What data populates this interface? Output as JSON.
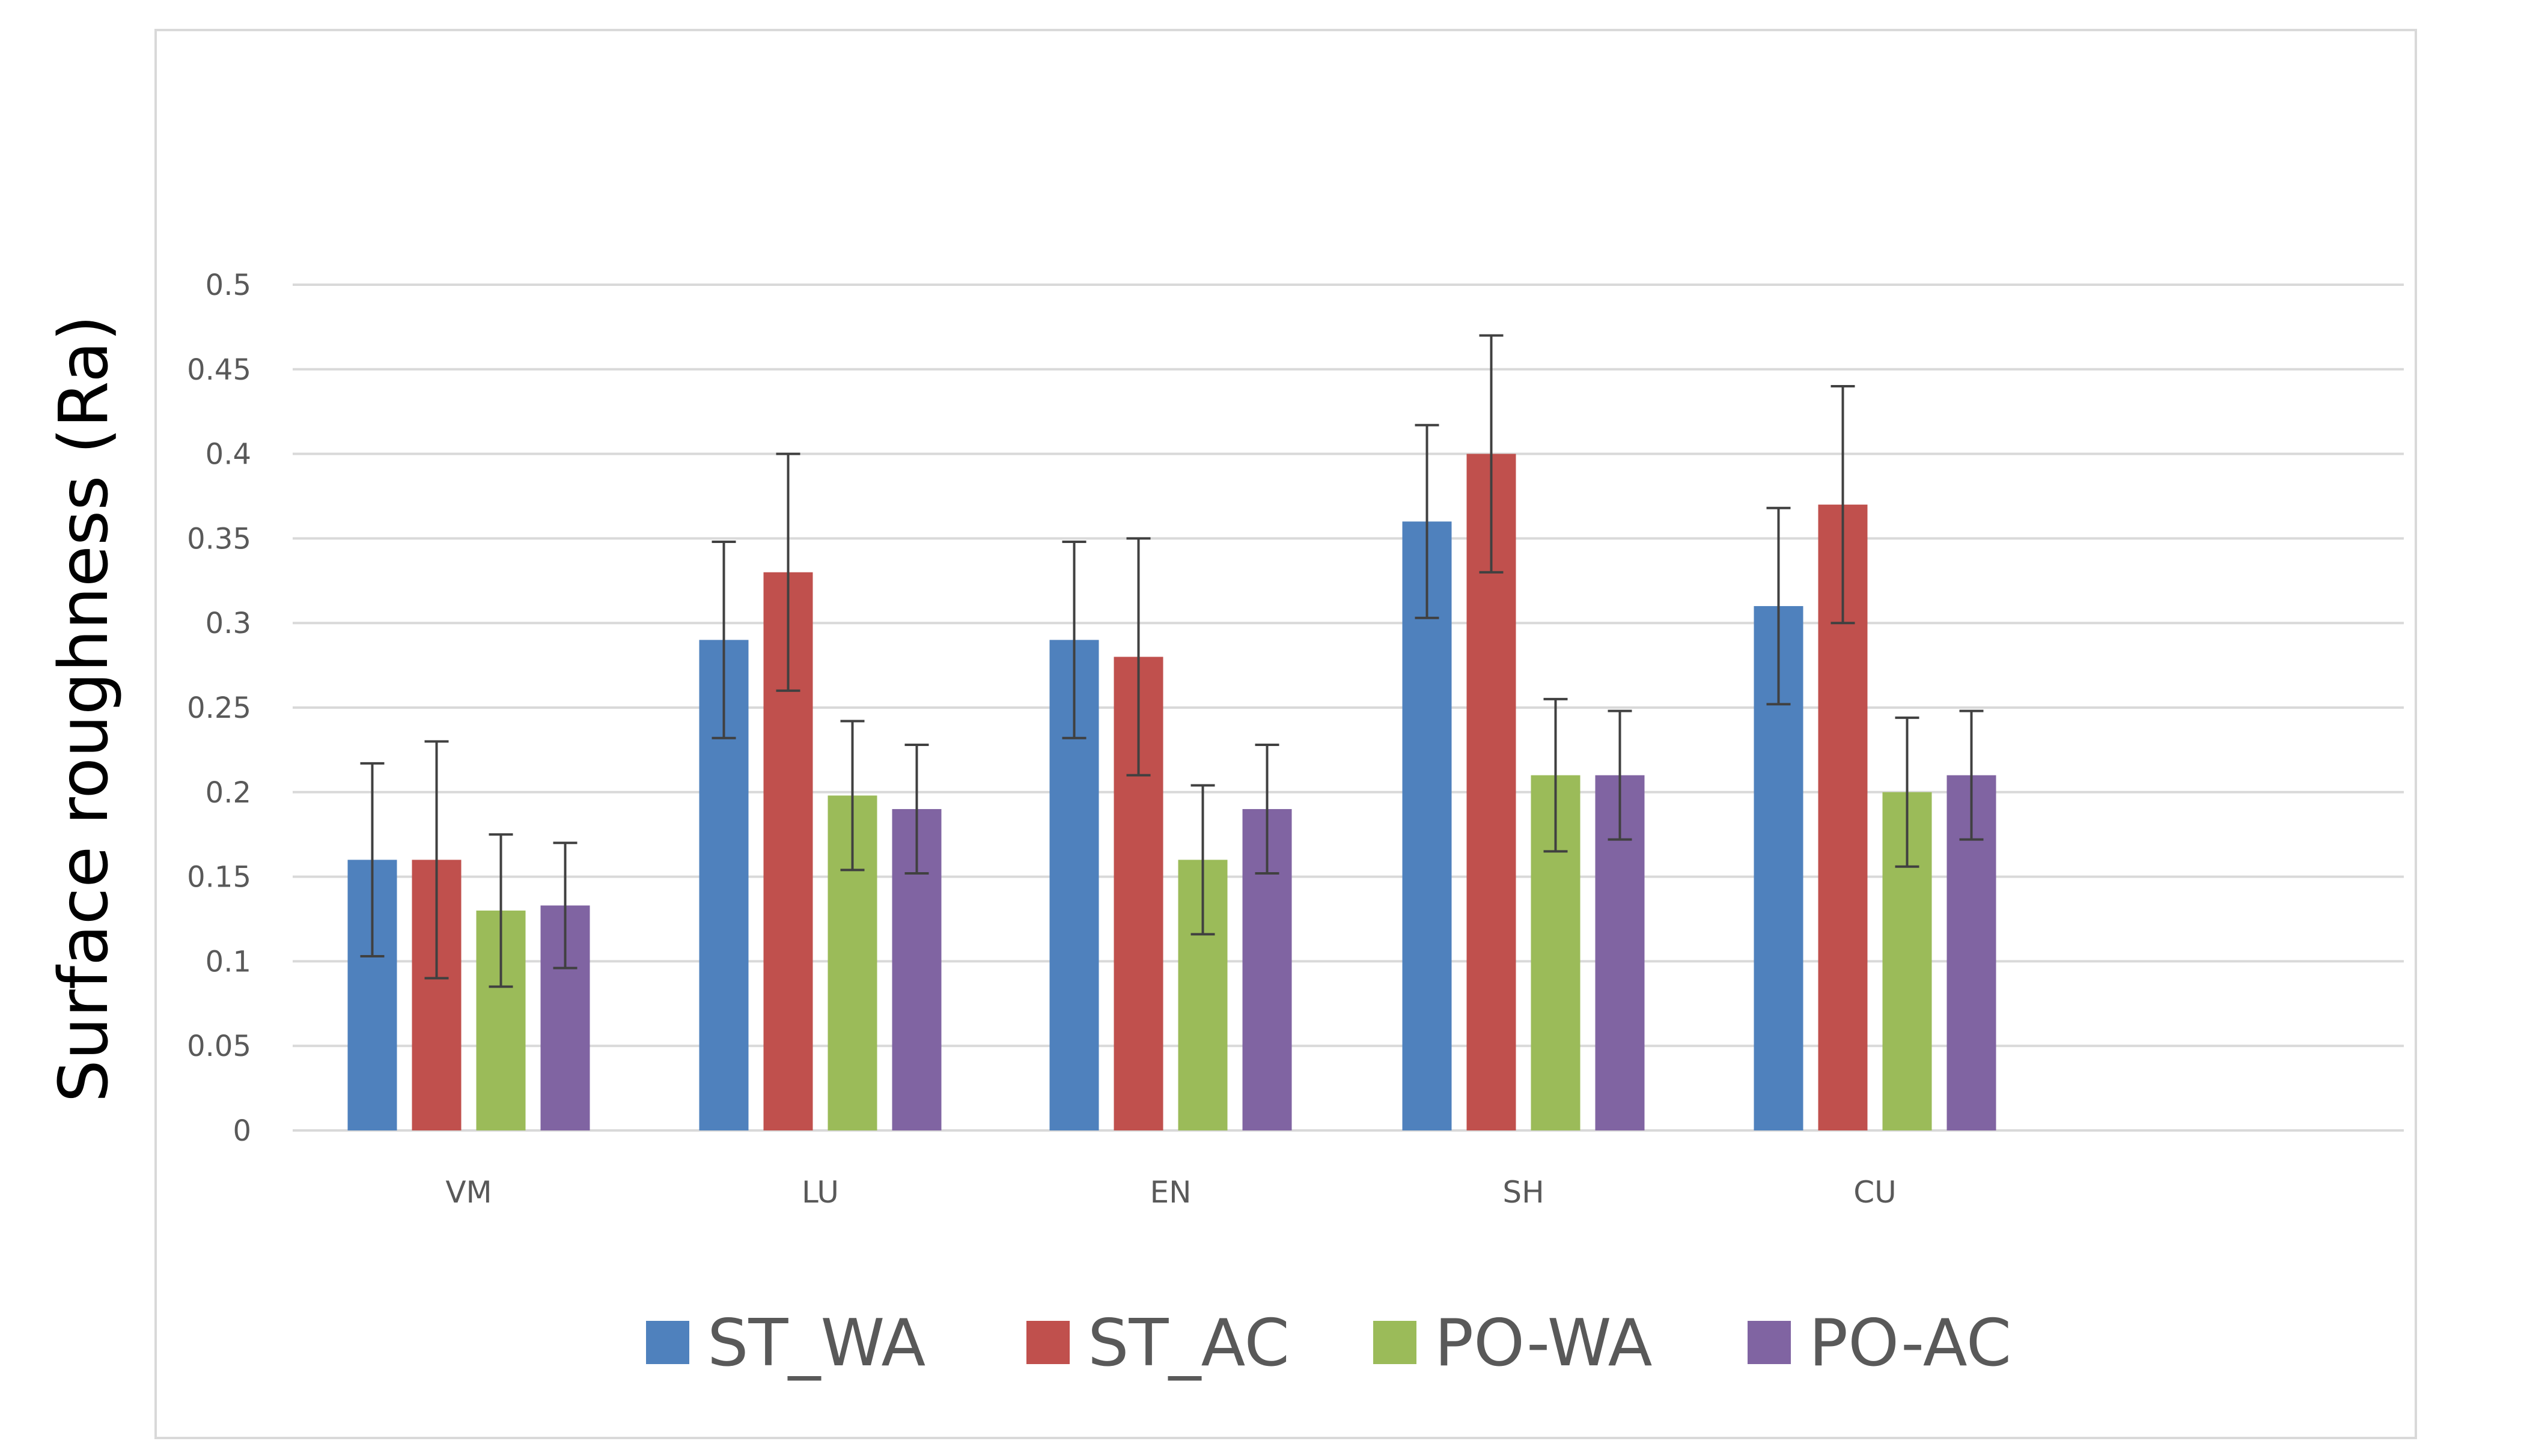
{
  "chart_data": {
    "type": "bar",
    "title": "",
    "xlabel": "",
    "ylabel": "Surface roughness (Ra)",
    "categories": [
      "VM",
      "LU",
      "EN",
      "SH",
      "CU"
    ],
    "ylim": [
      0,
      0.5
    ],
    "yticks": [
      0,
      0.05,
      0.1,
      0.15,
      0.2,
      0.25,
      0.3,
      0.35,
      0.4,
      0.45,
      0.5
    ],
    "ytick_labels": [
      "0",
      "0.05",
      "0.1",
      "0.15",
      "0.2",
      "0.25",
      "0.3",
      "0.35",
      "0.4",
      "0.45",
      "0.5"
    ],
    "grid": true,
    "legend_position": "bottom",
    "error_bars": true,
    "series": [
      {
        "name": "ST_WA",
        "color": "#4f81bd",
        "values": [
          0.16,
          0.29,
          0.29,
          0.36,
          0.31
        ],
        "errors": [
          0.057,
          0.058,
          0.058,
          0.057,
          0.058
        ]
      },
      {
        "name": "ST_AC",
        "color": "#c0504d",
        "values": [
          0.16,
          0.33,
          0.28,
          0.4,
          0.37
        ],
        "errors": [
          0.07,
          0.07,
          0.07,
          0.07,
          0.07
        ]
      },
      {
        "name": "PO-WA",
        "color": "#9bbb59",
        "values": [
          0.13,
          0.198,
          0.16,
          0.21,
          0.2
        ],
        "errors": [
          0.045,
          0.044,
          0.044,
          0.045,
          0.044
        ]
      },
      {
        "name": "PO-AC",
        "color": "#8064a2",
        "values": [
          0.133,
          0.19,
          0.19,
          0.21,
          0.21
        ],
        "errors": [
          0.037,
          0.038,
          0.038,
          0.038,
          0.038
        ]
      }
    ]
  }
}
